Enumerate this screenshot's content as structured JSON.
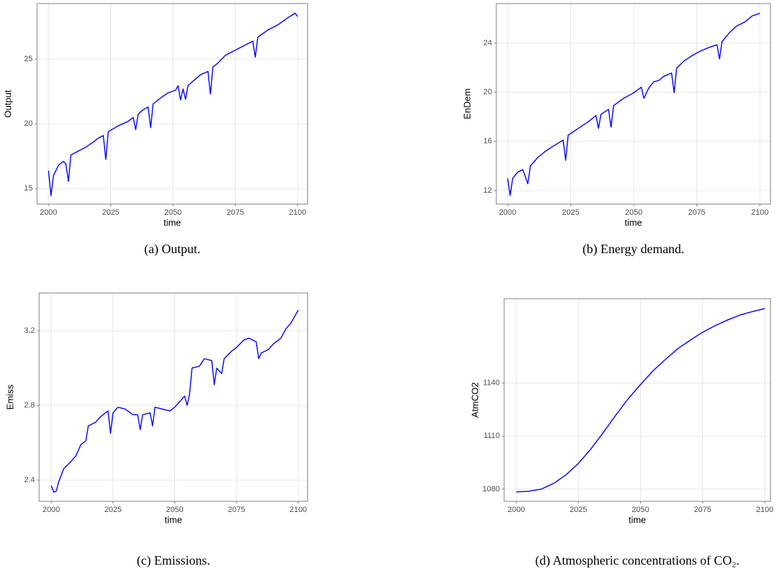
{
  "chart_data": [
    {
      "type": "line",
      "caption": "(a) Output.",
      "xlabel": "time",
      "ylabel": "Output",
      "color": "#0000ff",
      "grid": true,
      "xlim": [
        1995.4,
        2104
      ],
      "xticks": [
        2000,
        2025,
        2050,
        2075,
        2100
      ],
      "ylim": [
        13.8,
        29.3
      ],
      "yticks": [
        15,
        20,
        25
      ],
      "x": [
        2000,
        2001,
        2002,
        2004,
        2006,
        2007,
        2008,
        2009,
        2012,
        2015,
        2018,
        2020,
        2022,
        2023,
        2024,
        2028,
        2032,
        2034,
        2035,
        2036,
        2038,
        2040,
        2041,
        2042,
        2045,
        2048,
        2051,
        2052,
        2053,
        2054,
        2055,
        2056,
        2058,
        2061,
        2064,
        2065,
        2066,
        2068,
        2071,
        2075,
        2079,
        2082,
        2083,
        2084,
        2088,
        2092,
        2096,
        2099,
        2100
      ],
      "values": [
        16.4,
        14.45,
        16.0,
        16.8,
        17.1,
        16.9,
        15.55,
        17.6,
        17.9,
        18.2,
        18.6,
        18.9,
        19.1,
        17.25,
        19.4,
        19.85,
        20.2,
        20.5,
        19.55,
        20.75,
        21.1,
        21.3,
        19.7,
        21.55,
        22.0,
        22.4,
        22.6,
        22.95,
        21.85,
        22.7,
        21.9,
        22.95,
        23.3,
        23.8,
        24.05,
        22.3,
        24.4,
        24.7,
        25.3,
        25.7,
        26.1,
        26.4,
        25.15,
        26.7,
        27.25,
        27.65,
        28.2,
        28.55,
        28.3
      ]
    },
    {
      "type": "line",
      "caption": "(b) Energy demand.",
      "xlabel": "time",
      "ylabel": "EnDem",
      "color": "#0000ff",
      "grid": true,
      "xlim": [
        1995.5,
        2104.2
      ],
      "xticks": [
        2000,
        2025,
        2050,
        2075,
        2100
      ],
      "ylim": [
        10.9,
        27.2
      ],
      "yticks": [
        12,
        16,
        20,
        24
      ],
      "x": [
        2000,
        2001,
        2002,
        2004,
        2006,
        2008,
        2009,
        2012,
        2015,
        2018,
        2022,
        2023,
        2024,
        2028,
        2032,
        2035,
        2036,
        2037,
        2040,
        2041,
        2042,
        2046,
        2050,
        2053,
        2054,
        2056,
        2058,
        2060,
        2062,
        2065,
        2066,
        2067,
        2069,
        2070,
        2073,
        2076,
        2080,
        2083,
        2084,
        2085,
        2088,
        2091,
        2094,
        2097,
        2100
      ],
      "values": [
        13.0,
        11.6,
        13.0,
        13.5,
        13.7,
        12.55,
        14.0,
        14.7,
        15.2,
        15.6,
        16.1,
        14.45,
        16.5,
        17.05,
        17.6,
        18.1,
        17.05,
        18.2,
        18.6,
        17.15,
        18.9,
        19.5,
        19.95,
        20.4,
        19.5,
        20.35,
        20.85,
        20.95,
        21.3,
        21.55,
        19.95,
        21.95,
        22.35,
        22.55,
        22.95,
        23.3,
        23.65,
        23.85,
        22.7,
        24.1,
        24.85,
        25.4,
        25.7,
        26.2,
        26.4
      ]
    },
    {
      "type": "line",
      "caption": "(c) Emissions.",
      "xlabel": "time",
      "ylabel": "Emiss",
      "color": "#0000ff",
      "grid": true,
      "xlim": [
        1995.1,
        2103.8
      ],
      "xticks": [
        2000,
        2025,
        2050,
        2075,
        2100
      ],
      "ylim": [
        2.286,
        3.402
      ],
      "yticks": [
        2.4,
        2.8,
        3.2
      ],
      "x": [
        2000,
        2001,
        2002,
        2003,
        2005,
        2008,
        2010,
        2012,
        2014,
        2015,
        2018,
        2020,
        2023,
        2024,
        2025,
        2027,
        2030,
        2033,
        2035,
        2036,
        2037,
        2040,
        2041,
        2042,
        2045,
        2048,
        2050,
        2052,
        2054,
        2055,
        2056,
        2057,
        2060,
        2062,
        2065,
        2066,
        2067,
        2069,
        2070,
        2073,
        2075,
        2078,
        2080,
        2083,
        2084,
        2085,
        2088,
        2090,
        2093,
        2095,
        2097,
        2100
      ],
      "values": [
        2.37,
        2.335,
        2.34,
        2.39,
        2.46,
        2.5,
        2.53,
        2.59,
        2.61,
        2.69,
        2.71,
        2.74,
        2.77,
        2.65,
        2.76,
        2.79,
        2.78,
        2.75,
        2.75,
        2.67,
        2.75,
        2.76,
        2.69,
        2.79,
        2.78,
        2.77,
        2.79,
        2.82,
        2.85,
        2.8,
        2.86,
        3.0,
        3.01,
        3.05,
        3.04,
        2.91,
        3.0,
        2.97,
        3.05,
        3.09,
        3.11,
        3.15,
        3.16,
        3.14,
        3.05,
        3.08,
        3.1,
        3.13,
        3.16,
        3.21,
        3.24,
        3.31
      ]
    },
    {
      "type": "line",
      "caption": "(d) Atmospheric concentrations of CO₂.",
      "xlabel": "time",
      "ylabel": "AtmCO2",
      "color": "#0000ff",
      "grid": true,
      "xlim": [
        1995.1,
        2102.3
      ],
      "xticks": [
        2000,
        2025,
        2050,
        2075,
        2100
      ],
      "ylim": [
        1073.1,
        1187.8
      ],
      "yticks": [
        1080,
        1110,
        1140
      ],
      "x": [
        2000,
        2005,
        2010,
        2015,
        2020,
        2025,
        2030,
        2035,
        2040,
        2045,
        2050,
        2055,
        2060,
        2065,
        2070,
        2075,
        2080,
        2085,
        2090,
        2095,
        2100
      ],
      "values": [
        1078.4,
        1078.8,
        1080,
        1083.2,
        1088.1,
        1094.6,
        1102.7,
        1112,
        1121.8,
        1131.1,
        1139.2,
        1146.9,
        1153.4,
        1159.5,
        1164.3,
        1168.8,
        1172.5,
        1175.7,
        1178.5,
        1180.5,
        1182.2
      ]
    }
  ]
}
